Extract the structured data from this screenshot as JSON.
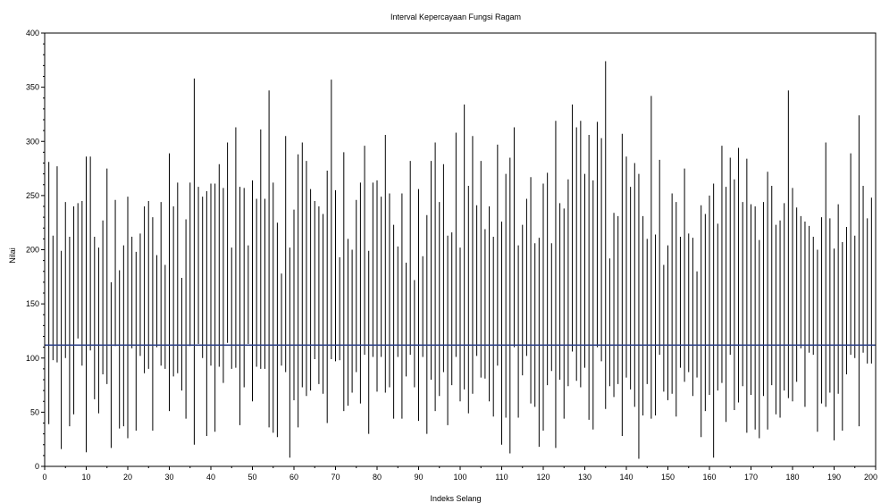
{
  "chart_data": {
    "type": "errorbar",
    "title": "Interval Kepercayaan Fungsi Ragam",
    "xlabel": "Indeks Selang",
    "ylabel": "Nilai",
    "xlim": [
      0,
      200
    ],
    "ylim": [
      0,
      400
    ],
    "xticks": [
      0,
      10,
      20,
      30,
      40,
      50,
      60,
      70,
      80,
      90,
      100,
      110,
      120,
      130,
      140,
      150,
      160,
      170,
      180,
      190,
      200
    ],
    "yticks": [
      0,
      50,
      100,
      150,
      200,
      250,
      300,
      350,
      400
    ],
    "grid": false,
    "reference_line": {
      "y": 112,
      "color": "#2b3f87"
    },
    "interval_color": "#000000",
    "intervals": [
      [
        1,
        39,
        281
      ],
      [
        2,
        98,
        213
      ],
      [
        3,
        96,
        277
      ],
      [
        4,
        16,
        199
      ],
      [
        5,
        100,
        244
      ],
      [
        6,
        37,
        212
      ],
      [
        7,
        48,
        240
      ],
      [
        8,
        118,
        243
      ],
      [
        9,
        93,
        245
      ],
      [
        10,
        13,
        286
      ],
      [
        11,
        107,
        286
      ],
      [
        12,
        62,
        212
      ],
      [
        13,
        49,
        202
      ],
      [
        14,
        85,
        227
      ],
      [
        15,
        76,
        275
      ],
      [
        16,
        17,
        170
      ],
      [
        17,
        111,
        246
      ],
      [
        18,
        35,
        181
      ],
      [
        19,
        37,
        204
      ],
      [
        20,
        26,
        249
      ],
      [
        21,
        109,
        212
      ],
      [
        22,
        33,
        198
      ],
      [
        23,
        102,
        215
      ],
      [
        24,
        86,
        240
      ],
      [
        25,
        90,
        245
      ],
      [
        26,
        33,
        230
      ],
      [
        27,
        110,
        195
      ],
      [
        28,
        93,
        244
      ],
      [
        29,
        90,
        186
      ],
      [
        30,
        51,
        289
      ],
      [
        31,
        83,
        240
      ],
      [
        32,
        86,
        262
      ],
      [
        33,
        70,
        174
      ],
      [
        34,
        44,
        228
      ],
      [
        35,
        111,
        262
      ],
      [
        36,
        20,
        358
      ],
      [
        37,
        113,
        258
      ],
      [
        38,
        100,
        249
      ],
      [
        39,
        28,
        254
      ],
      [
        40,
        93,
        261
      ],
      [
        41,
        32,
        261
      ],
      [
        42,
        92,
        279
      ],
      [
        43,
        77,
        257
      ],
      [
        44,
        114,
        299
      ],
      [
        45,
        90,
        202
      ],
      [
        46,
        91,
        313
      ],
      [
        47,
        38,
        258
      ],
      [
        48,
        73,
        257
      ],
      [
        49,
        113,
        204
      ],
      [
        50,
        60,
        264
      ],
      [
        51,
        92,
        247
      ],
      [
        52,
        90,
        311
      ],
      [
        53,
        90,
        247
      ],
      [
        54,
        36,
        347
      ],
      [
        55,
        31,
        262
      ],
      [
        56,
        27,
        225
      ],
      [
        57,
        93,
        178
      ],
      [
        58,
        87,
        305
      ],
      [
        59,
        8,
        202
      ],
      [
        60,
        61,
        237
      ],
      [
        61,
        36,
        288
      ],
      [
        62,
        73,
        299
      ],
      [
        63,
        65,
        282
      ],
      [
        64,
        70,
        256
      ],
      [
        65,
        99,
        245
      ],
      [
        66,
        76,
        240
      ],
      [
        67,
        67,
        233
      ],
      [
        68,
        40,
        273
      ],
      [
        69,
        99,
        357
      ],
      [
        70,
        97,
        255
      ],
      [
        71,
        98,
        193
      ],
      [
        72,
        51,
        290
      ],
      [
        73,
        56,
        210
      ],
      [
        74,
        68,
        200
      ],
      [
        75,
        87,
        246
      ],
      [
        76,
        58,
        262
      ],
      [
        77,
        103,
        296
      ],
      [
        78,
        30,
        199
      ],
      [
        79,
        101,
        262
      ],
      [
        80,
        69,
        264
      ],
      [
        81,
        101,
        249
      ],
      [
        82,
        68,
        306
      ],
      [
        83,
        73,
        252
      ],
      [
        84,
        44,
        223
      ],
      [
        85,
        101,
        203
      ],
      [
        86,
        44,
        252
      ],
      [
        87,
        83,
        188
      ],
      [
        88,
        103,
        282
      ],
      [
        89,
        73,
        172
      ],
      [
        90,
        42,
        256
      ],
      [
        91,
        101,
        194
      ],
      [
        92,
        30,
        232
      ],
      [
        93,
        80,
        282
      ],
      [
        94,
        51,
        299
      ],
      [
        95,
        65,
        244
      ],
      [
        96,
        87,
        279
      ],
      [
        97,
        38,
        213
      ],
      [
        98,
        75,
        216
      ],
      [
        99,
        101,
        308
      ],
      [
        100,
        60,
        202
      ],
      [
        101,
        71,
        334
      ],
      [
        102,
        49,
        259
      ],
      [
        103,
        67,
        305
      ],
      [
        104,
        102,
        241
      ],
      [
        105,
        82,
        282
      ],
      [
        106,
        81,
        219
      ],
      [
        107,
        60,
        240
      ],
      [
        108,
        46,
        212
      ],
      [
        109,
        93,
        297
      ],
      [
        110,
        20,
        226
      ],
      [
        111,
        45,
        270
      ],
      [
        112,
        12,
        285
      ],
      [
        113,
        110,
        313
      ],
      [
        114,
        45,
        204
      ],
      [
        115,
        84,
        223
      ],
      [
        116,
        102,
        247
      ],
      [
        117,
        58,
        267
      ],
      [
        118,
        55,
        206
      ],
      [
        119,
        18,
        211
      ],
      [
        120,
        33,
        261
      ],
      [
        121,
        75,
        271
      ],
      [
        122,
        88,
        206
      ],
      [
        123,
        17,
        319
      ],
      [
        124,
        80,
        243
      ],
      [
        125,
        44,
        238
      ],
      [
        126,
        74,
        265
      ],
      [
        127,
        106,
        334
      ],
      [
        128,
        79,
        313
      ],
      [
        129,
        73,
        319
      ],
      [
        130,
        91,
        270
      ],
      [
        131,
        43,
        306
      ],
      [
        132,
        34,
        264
      ],
      [
        133,
        110,
        318
      ],
      [
        134,
        97,
        303
      ],
      [
        135,
        53,
        374
      ],
      [
        136,
        74,
        192
      ],
      [
        137,
        64,
        234
      ],
      [
        138,
        76,
        231
      ],
      [
        139,
        28,
        307
      ],
      [
        140,
        82,
        286
      ],
      [
        141,
        71,
        258
      ],
      [
        142,
        55,
        280
      ],
      [
        143,
        7,
        270
      ],
      [
        144,
        47,
        231
      ],
      [
        145,
        76,
        210
      ],
      [
        146,
        44,
        342
      ],
      [
        147,
        47,
        214
      ],
      [
        148,
        103,
        283
      ],
      [
        149,
        69,
        186
      ],
      [
        150,
        61,
        204
      ],
      [
        151,
        67,
        252
      ],
      [
        152,
        46,
        244
      ],
      [
        153,
        91,
        212
      ],
      [
        154,
        78,
        275
      ],
      [
        155,
        87,
        215
      ],
      [
        156,
        65,
        211
      ],
      [
        157,
        82,
        180
      ],
      [
        158,
        27,
        241
      ],
      [
        159,
        51,
        233
      ],
      [
        160,
        66,
        250
      ],
      [
        161,
        8,
        261
      ],
      [
        162,
        70,
        224
      ],
      [
        163,
        77,
        296
      ],
      [
        164,
        41,
        258
      ],
      [
        165,
        103,
        285
      ],
      [
        166,
        52,
        265
      ],
      [
        167,
        59,
        294
      ],
      [
        168,
        74,
        244
      ],
      [
        169,
        31,
        284
      ],
      [
        170,
        66,
        242
      ],
      [
        171,
        34,
        240
      ],
      [
        172,
        26,
        209
      ],
      [
        173,
        65,
        244
      ],
      [
        174,
        34,
        272
      ],
      [
        175,
        75,
        259
      ],
      [
        176,
        48,
        223
      ],
      [
        177,
        45,
        227
      ],
      [
        178,
        70,
        243
      ],
      [
        179,
        63,
        347
      ],
      [
        180,
        60,
        257
      ],
      [
        181,
        78,
        239
      ],
      [
        182,
        109,
        231
      ],
      [
        183,
        55,
        226
      ],
      [
        184,
        105,
        222
      ],
      [
        185,
        103,
        212
      ],
      [
        186,
        32,
        200
      ],
      [
        187,
        58,
        230
      ],
      [
        188,
        55,
        299
      ],
      [
        189,
        68,
        229
      ],
      [
        190,
        24,
        201
      ],
      [
        191,
        67,
        242
      ],
      [
        192,
        33,
        207
      ],
      [
        193,
        85,
        221
      ],
      [
        194,
        103,
        289
      ],
      [
        195,
        100,
        213
      ],
      [
        196,
        37,
        324
      ],
      [
        197,
        105,
        259
      ],
      [
        198,
        95,
        229
      ],
      [
        199,
        95,
        248
      ],
      [
        200,
        95,
        249
      ]
    ]
  }
}
